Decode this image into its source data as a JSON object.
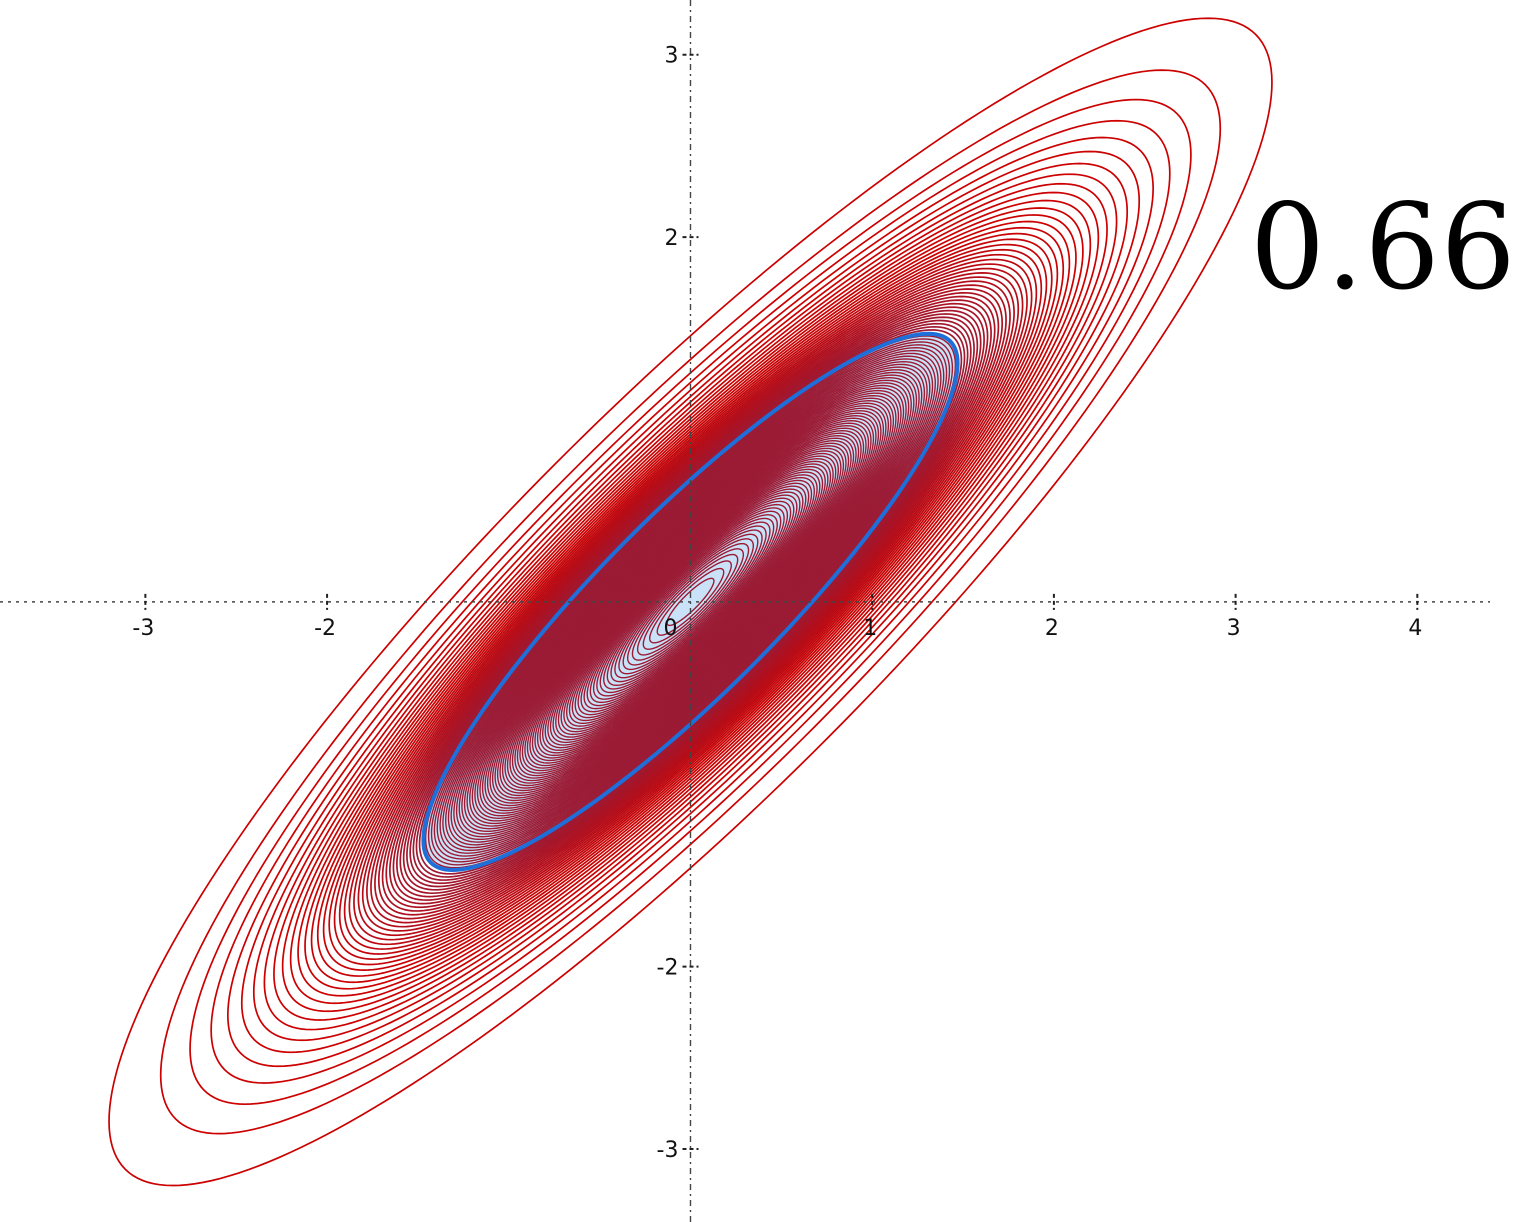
{
  "annotation": {
    "value_label": "0.66"
  },
  "chart_data": {
    "type": "contour",
    "title": "",
    "xlabel": "",
    "ylabel": "",
    "xlim": [
      -3.8,
      4.4
    ],
    "ylim": [
      -3.4,
      3.3
    ],
    "grid": false,
    "x_ticks": [
      -3,
      -2,
      1,
      2,
      3,
      4
    ],
    "x_tick_labels": [
      "-3",
      "-2",
      "1",
      "2",
      "3",
      "4"
    ],
    "y_ticks": [
      3,
      2,
      -2,
      -3
    ],
    "y_tick_labels": [
      "3",
      "2",
      "-2",
      "-3"
    ],
    "origin_label": "0",
    "distribution": {
      "kind": "bivariate normal density contours",
      "mean": [
        0,
        0
      ],
      "sigma_x": 1,
      "sigma_y": 1,
      "correlation": 0.89
    },
    "contours": {
      "count": 120,
      "mahalanobis_radius_max": 3.2,
      "color_outer": "#cc0000",
      "color_inner": "#9b1b35"
    },
    "highlighted_contour": {
      "mahalanobis_radius": 1.47,
      "stroke_color": "#1e6fd9",
      "fill_color": "#c9e2f7"
    },
    "colors": {
      "axis": "#444444",
      "background": "#ffffff"
    }
  }
}
